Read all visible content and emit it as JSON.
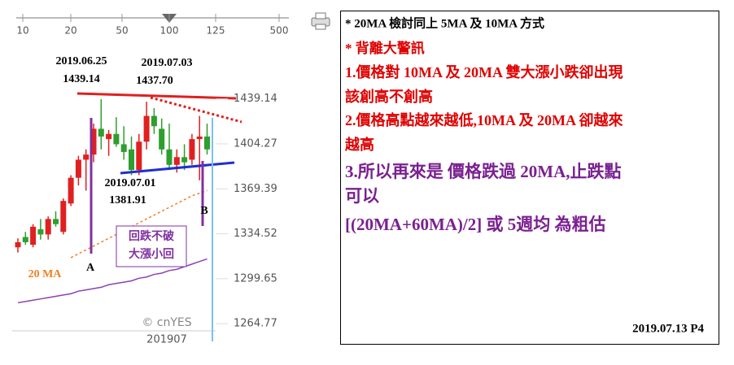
{
  "chart_data": {
    "type": "candlestick",
    "zoom_scale": [
      "10",
      "20",
      "50",
      "100",
      "125",
      "500"
    ],
    "ylim": [
      1251,
      1456
    ],
    "yticks": [
      1439.14,
      1404.27,
      1369.39,
      1334.52,
      1299.65,
      1264.77
    ],
    "up_color": "#e02020",
    "down_color": "#2e9e2e",
    "open": [
      1324,
      1332,
      1326,
      1338,
      1334,
      1346,
      1336,
      1358,
      1378,
      1392,
      1396,
      1416,
      1408,
      1412,
      1404,
      1400,
      1384,
      1406,
      1426,
      1416,
      1400,
      1388,
      1394,
      1392,
      1408,
      1410
    ],
    "high": [
      1331,
      1336,
      1342,
      1346,
      1348,
      1352,
      1362,
      1380,
      1395,
      1400,
      1420,
      1439,
      1415,
      1425,
      1418,
      1410,
      1412,
      1437,
      1432,
      1424,
      1420,
      1400,
      1404,
      1412,
      1426,
      1420
    ],
    "low": [
      1320,
      1326,
      1324,
      1330,
      1330,
      1340,
      1334,
      1356,
      1372,
      1368,
      1390,
      1400,
      1395,
      1402,
      1392,
      1380,
      1380,
      1400,
      1412,
      1396,
      1384,
      1382,
      1384,
      1388,
      1376,
      1396
    ],
    "close": [
      1328,
      1328,
      1340,
      1334,
      1346,
      1342,
      1360,
      1378,
      1392,
      1396,
      1416,
      1410,
      1412,
      1404,
      1398,
      1384,
      1406,
      1426,
      1418,
      1400,
      1388,
      1394,
      1390,
      1408,
      1410,
      1400
    ],
    "lines": [
      {
        "name": "20 MA",
        "color": "#f08020",
        "values": [
          null,
          null,
          null,
          null,
          null,
          null,
          null,
          1316,
          1319,
          1322,
          1325,
          1328,
          1331,
          1334,
          1337,
          1340,
          1343,
          1346,
          1349,
          1352,
          1355,
          1358,
          1361,
          1364,
          1366,
          1368
        ]
      },
      {
        "color": "#9040b0",
        "values": [
          1281,
          1282,
          1283,
          1284,
          1285,
          1286,
          1287,
          1288,
          1290,
          1291,
          1292,
          1293,
          1295,
          1296,
          1297,
          1298,
          1300,
          1301,
          1303,
          1304,
          1306,
          1307,
          1309,
          1311,
          1313,
          1315
        ]
      }
    ],
    "annotations": {
      "high1_date": "2019.06.25",
      "high1_price": "1439.14",
      "high2_date": "2019.07.03",
      "high2_price": "1437.70",
      "low_date": "2019.07.01",
      "low_price": "1381.91",
      "point_a": "A",
      "point_b": "B",
      "box_line1": "回跌不破",
      "box_line2": "大漲小回",
      "watermark": "© cnYES",
      "period": "201907"
    }
  },
  "notes": {
    "lines": [
      "* 20MA 檢討同上 5MA 及 10MA 方式",
      "* 背離大警訊",
      "1.價格對 10MA 及 20MA 雙大漲小跌卻出現",
      "該創高不創高",
      "2.價格高點越來越低,10MA 及 20MA 卻越來",
      "越高",
      "3.所以再來是 價格跌過 20MA,止跌點",
      "可以",
      "[(20MA+60MA)/2] 或 5週均 為粗估"
    ],
    "footer": "2019.07.13   P4"
  }
}
